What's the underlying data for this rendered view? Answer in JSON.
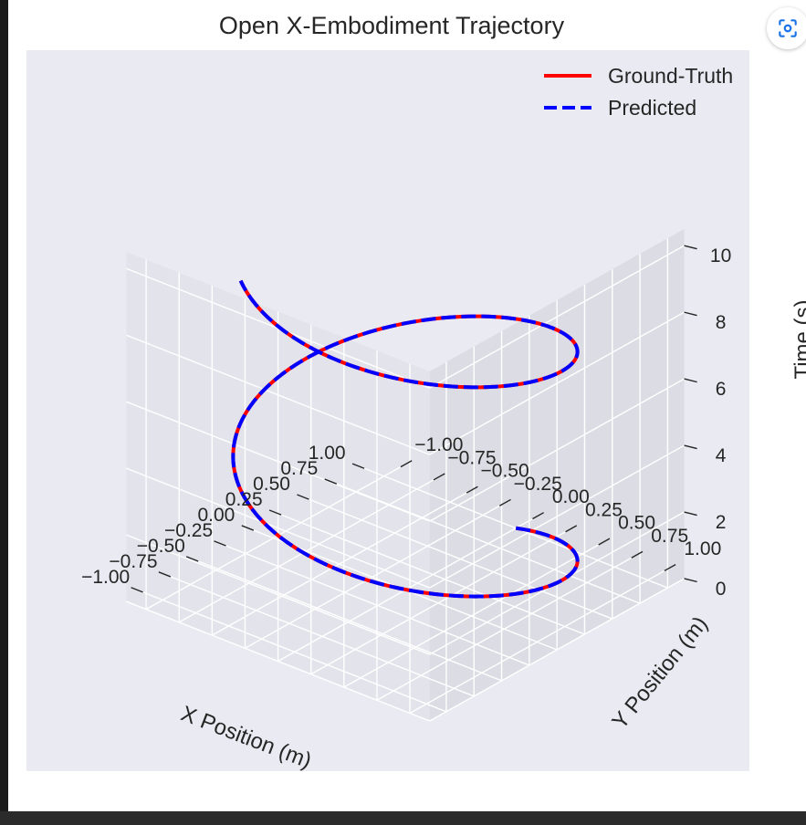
{
  "lens_button": {
    "icon": "lens-scan-icon",
    "accent": "#1a73e8"
  },
  "chart_data": {
    "type": "line3d",
    "title": "Open X-Embodiment Trajectory",
    "xlabel": "X Position (m)",
    "ylabel": "Y Position (m)",
    "zlabel": "Time (s)",
    "xticks": [
      "−1.00",
      "−0.75",
      "−0.50",
      "−0.25",
      "0.00",
      "0.25",
      "0.50",
      "0.75",
      "1.00"
    ],
    "yticks": [
      "−1.00",
      "−0.75",
      "−0.50",
      "−0.25",
      "0.00",
      "0.25",
      "0.50",
      "0.75",
      "1.00"
    ],
    "zticks": [
      "0",
      "2",
      "4",
      "6",
      "8",
      "10"
    ],
    "xlim": [
      -1.15,
      1.15
    ],
    "ylim": [
      -1.15,
      1.15
    ],
    "zlim": [
      0,
      10.5
    ],
    "grid": true,
    "legend_position": "top-right",
    "series": [
      {
        "name": "Ground-Truth",
        "color": "#ff0000",
        "style": "solid",
        "x": "cos(t)",
        "y": "sin(t)",
        "z": "t",
        "t_range": [
          0,
          10
        ]
      },
      {
        "name": "Predicted",
        "color": "#0000ff",
        "style": "dashed",
        "x": "cos(t)",
        "y": "sin(t)",
        "z": "t",
        "t_range": [
          0,
          10
        ]
      }
    ]
  }
}
